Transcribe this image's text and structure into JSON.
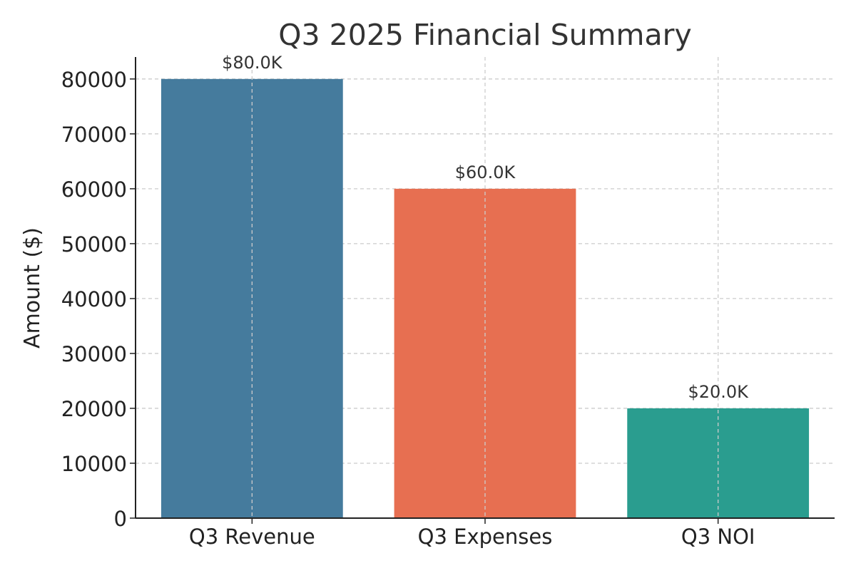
{
  "chart_data": {
    "type": "bar",
    "title": "Q3 2025 Financial Summary",
    "ylabel": "Amount ($)",
    "xlabel": "",
    "categories": [
      "Q3 Revenue",
      "Q3 Expenses",
      "Q3 NOI"
    ],
    "values": [
      80000,
      60000,
      20000
    ],
    "data_labels": [
      "$80.0K",
      "$60.0K",
      "$20.0K"
    ],
    "colors": [
      "#457b9d",
      "#e76f51",
      "#2a9d8f"
    ],
    "ylim": [
      0,
      84000
    ],
    "yticks": [
      0,
      10000,
      20000,
      30000,
      40000,
      50000,
      60000,
      70000,
      80000
    ],
    "ytick_labels": [
      "0",
      "10000",
      "20000",
      "30000",
      "40000",
      "50000",
      "60000",
      "70000",
      "80000"
    ],
    "grid": true,
    "grid_style": "dashed"
  }
}
